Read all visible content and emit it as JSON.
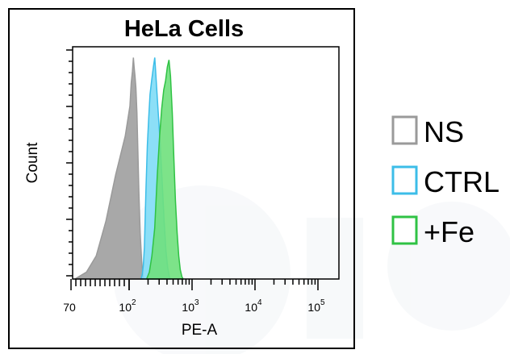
{
  "chart_data": {
    "type": "area",
    "title": "HeLa Cells",
    "xlabel": "PE-A",
    "ylabel": "Count",
    "x_scale": "log",
    "xlim": [
      70,
      140000
    ],
    "x_tick_labels": [
      {
        "value": 70,
        "base": "70",
        "exp": ""
      },
      {
        "value": 100,
        "base": "10",
        "exp": "2"
      },
      {
        "value": 1000,
        "base": "10",
        "exp": "3"
      },
      {
        "value": 10000,
        "base": "10",
        "exp": "4"
      },
      {
        "value": 100000,
        "base": "10",
        "exp": "5"
      }
    ],
    "ylim": [
      0,
      100
    ],
    "legend_position": "right",
    "series": [
      {
        "name": "NS",
        "color": "#9a9a9a",
        "fill": "#a8a8a8",
        "points": [
          [
            72,
            0
          ],
          [
            78,
            3
          ],
          [
            83,
            10
          ],
          [
            88,
            25
          ],
          [
            93,
            45
          ],
          [
            98,
            62
          ],
          [
            103,
            75
          ],
          [
            108,
            85
          ],
          [
            113,
            90
          ],
          [
            117,
            96
          ],
          [
            120,
            92
          ],
          [
            124,
            88
          ],
          [
            128,
            83
          ],
          [
            133,
            72
          ],
          [
            138,
            55
          ],
          [
            143,
            38
          ],
          [
            150,
            20
          ],
          [
            158,
            8
          ],
          [
            165,
            2
          ],
          [
            170,
            0
          ]
        ]
      },
      {
        "name": "CTRL",
        "color": "#3cbde8",
        "fill": "#7fdcf6",
        "points": [
          [
            155,
            0
          ],
          [
            162,
            2
          ],
          [
            168,
            6
          ],
          [
            175,
            14
          ],
          [
            185,
            38
          ],
          [
            195,
            58
          ],
          [
            205,
            70
          ],
          [
            215,
            80
          ],
          [
            228,
            86
          ],
          [
            243,
            92
          ],
          [
            256,
            96
          ],
          [
            270,
            86
          ],
          [
            290,
            72
          ],
          [
            310,
            60
          ],
          [
            335,
            42
          ],
          [
            360,
            25
          ],
          [
            385,
            12
          ],
          [
            410,
            5
          ],
          [
            435,
            1
          ],
          [
            450,
            0
          ]
        ]
      },
      {
        "name": "+Fe",
        "color": "#2fc244",
        "fill": "#6fe07c",
        "points": [
          [
            190,
            0
          ],
          [
            210,
            3
          ],
          [
            230,
            10
          ],
          [
            255,
            22
          ],
          [
            280,
            45
          ],
          [
            305,
            62
          ],
          [
            330,
            74
          ],
          [
            355,
            82
          ],
          [
            380,
            86
          ],
          [
            405,
            92
          ],
          [
            430,
            95
          ],
          [
            455,
            88
          ],
          [
            485,
            72
          ],
          [
            515,
            52
          ],
          [
            545,
            34
          ],
          [
            580,
            20
          ],
          [
            615,
            10
          ],
          [
            650,
            4
          ],
          [
            690,
            1
          ],
          [
            720,
            0
          ]
        ]
      }
    ]
  }
}
